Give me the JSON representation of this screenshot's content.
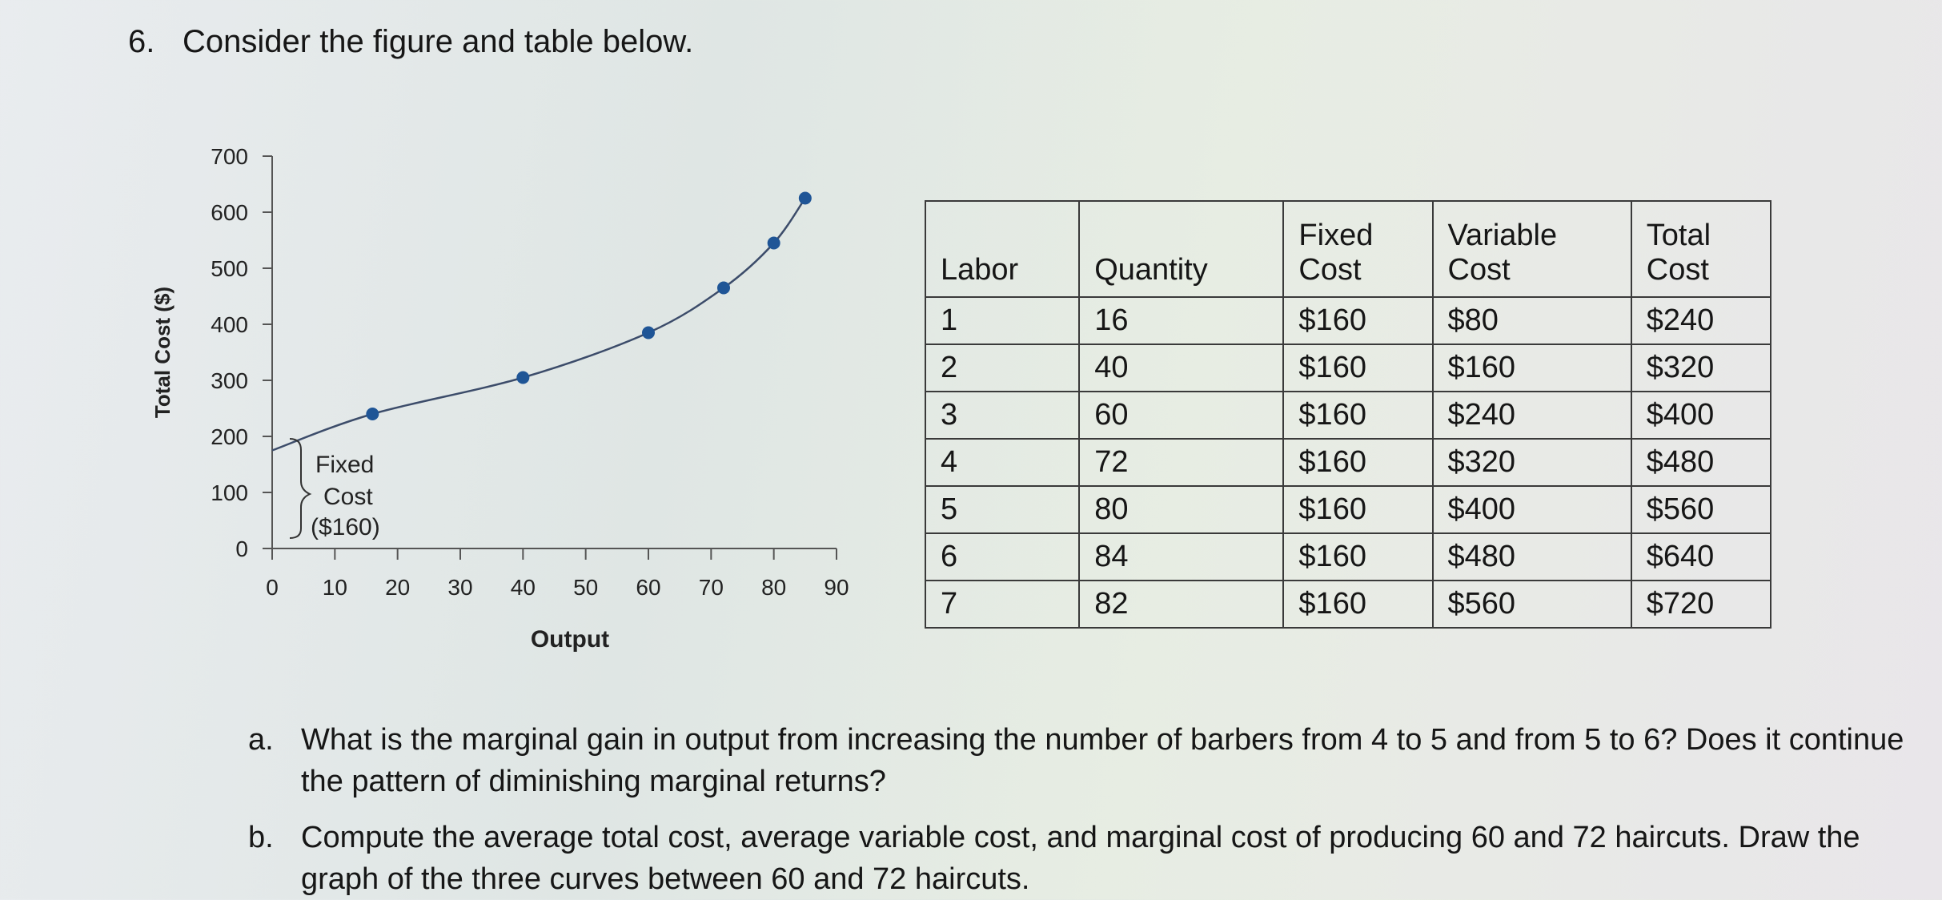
{
  "question": {
    "number": "6.",
    "prompt": "Consider the figure and table below."
  },
  "chart_data": {
    "type": "line",
    "xlabel": "Output",
    "ylabel": "Total Cost ($)",
    "xlim": [
      0,
      90
    ],
    "ylim": [
      0,
      700
    ],
    "x_ticks": [
      0,
      10,
      20,
      30,
      40,
      50,
      60,
      70,
      80,
      90
    ],
    "y_ticks": [
      0,
      100,
      200,
      300,
      400,
      500,
      600,
      700
    ],
    "curve": [
      {
        "x": 0,
        "y": 175
      },
      {
        "x": 16,
        "y": 240
      },
      {
        "x": 40,
        "y": 305
      },
      {
        "x": 60,
        "y": 385
      },
      {
        "x": 72,
        "y": 465
      },
      {
        "x": 80,
        "y": 545
      },
      {
        "x": 85,
        "y": 625
      }
    ],
    "points": [
      {
        "x": 16,
        "y": 240
      },
      {
        "x": 40,
        "y": 305
      },
      {
        "x": 60,
        "y": 385
      },
      {
        "x": 72,
        "y": 465
      },
      {
        "x": 80,
        "y": 545
      },
      {
        "x": 85,
        "y": 625
      }
    ],
    "annotation": {
      "lines": [
        "Fixed",
        "Cost",
        "($160)"
      ]
    },
    "colors": {
      "curve": "#3c4c6a",
      "point": "#1f5596"
    }
  },
  "table": {
    "headers": [
      [
        "",
        "Labor"
      ],
      [
        "",
        "Quantity"
      ],
      [
        "Fixed",
        "Cost"
      ],
      [
        "Variable",
        "Cost"
      ],
      [
        "Total",
        "Cost"
      ]
    ],
    "rows": [
      [
        "1",
        "16",
        "$160",
        "$80",
        "$240"
      ],
      [
        "2",
        "40",
        "$160",
        "$160",
        "$320"
      ],
      [
        "3",
        "60",
        "$160",
        "$240",
        "$400"
      ],
      [
        "4",
        "72",
        "$160",
        "$320",
        "$480"
      ],
      [
        "5",
        "80",
        "$160",
        "$400",
        "$560"
      ],
      [
        "6",
        "84",
        "$160",
        "$480",
        "$640"
      ],
      [
        "7",
        "82",
        "$160",
        "$560",
        "$720"
      ]
    ]
  },
  "subquestions": [
    {
      "letter": "a.",
      "text": "What is the marginal gain in output from increasing the number of barbers from 4 to 5 and from 5 to 6? Does it continue the pattern of diminishing marginal returns?"
    },
    {
      "letter": "b.",
      "text": "Compute the average total cost, average variable cost, and marginal cost of producing 60 and 72 haircuts. Draw the graph of the three curves between 60 and 72 haircuts."
    }
  ]
}
